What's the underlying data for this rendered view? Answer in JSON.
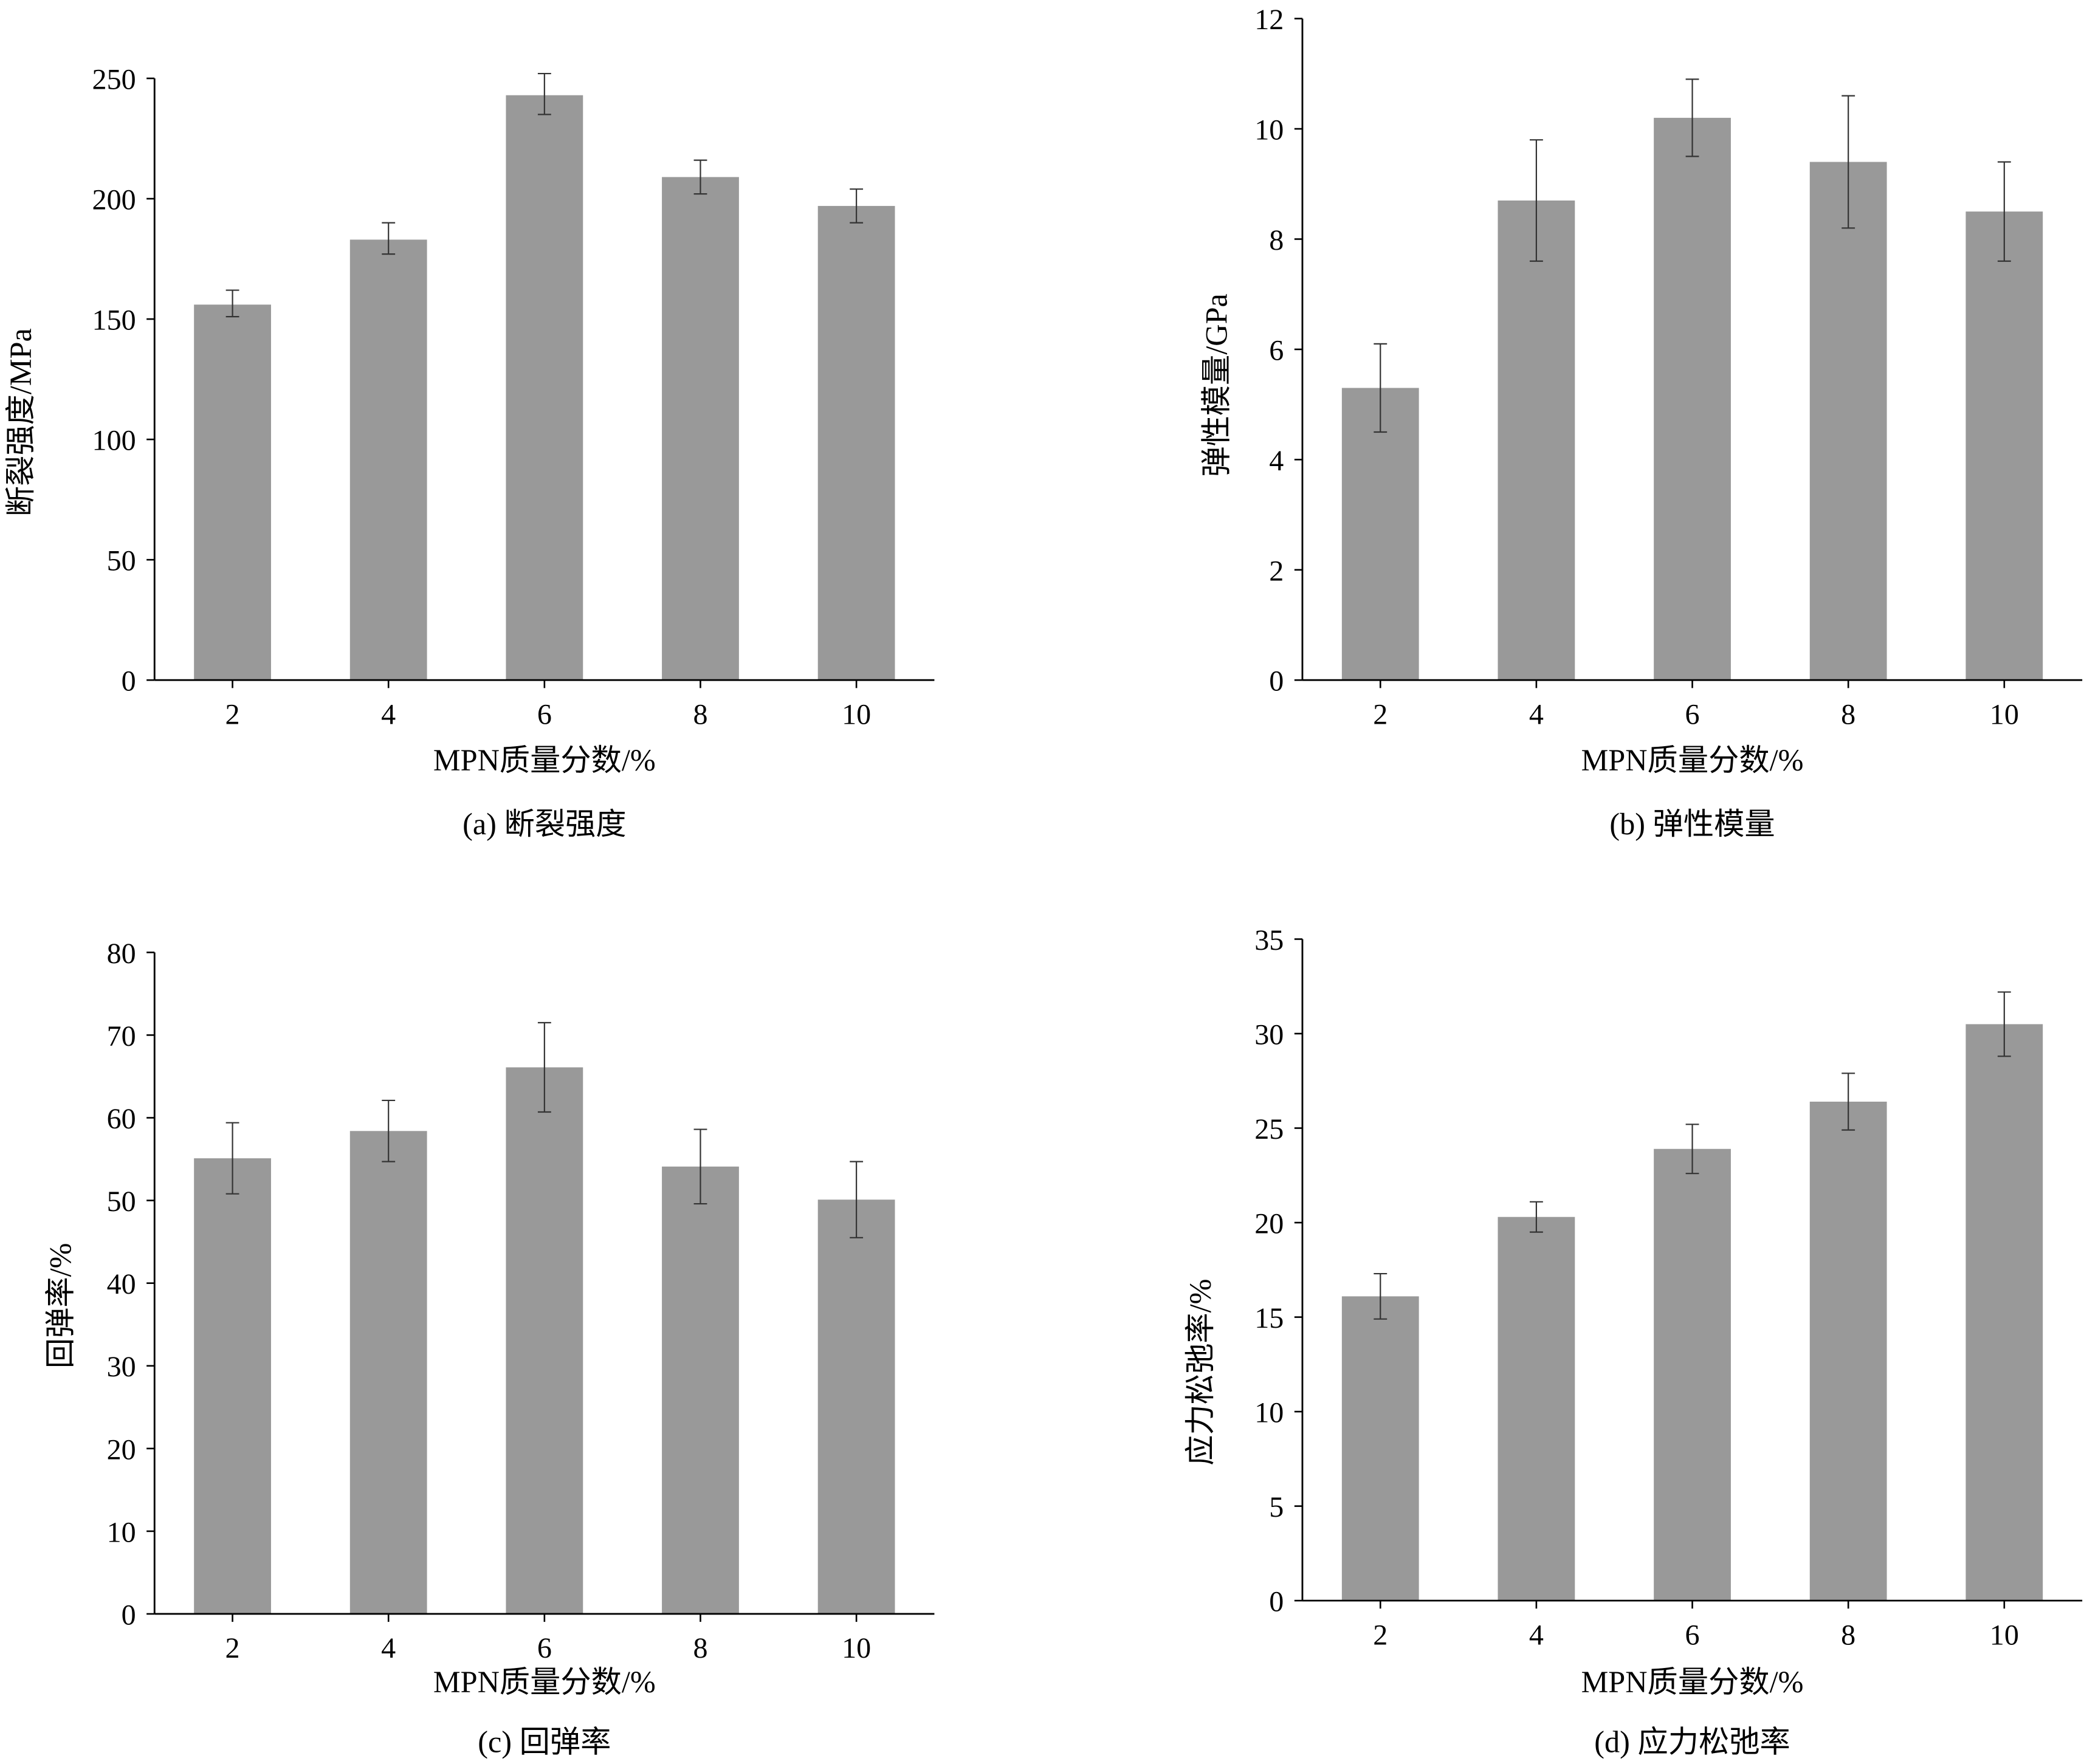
{
  "bar_color": "#999999",
  "chart_data": [
    {
      "type": "bar",
      "caption": "(a) 断裂强度",
      "xlabel": "MPN质量分数/%",
      "ylabel": "断裂强度/MPa",
      "categories": [
        "2",
        "4",
        "6",
        "8",
        "10"
      ],
      "values": [
        156,
        183,
        243,
        209,
        197
      ],
      "error_low": [
        151,
        177,
        235,
        202,
        190
      ],
      "error_high": [
        162,
        190,
        252,
        216,
        204
      ],
      "ylim": [
        0,
        250
      ],
      "yticks": [
        "0",
        "50",
        "100",
        "150",
        "200",
        "250"
      ]
    },
    {
      "type": "bar",
      "caption": "(b) 弹性模量",
      "xlabel": "MPN质量分数/%",
      "ylabel": "弹性模量/GPa",
      "categories": [
        "2",
        "4",
        "6",
        "8",
        "10"
      ],
      "values": [
        5.3,
        8.7,
        10.2,
        9.4,
        8.5
      ],
      "error_low": [
        4.5,
        7.6,
        9.5,
        8.2,
        7.6
      ],
      "error_high": [
        6.1,
        9.8,
        10.9,
        10.6,
        9.4
      ],
      "ylim": [
        0,
        12
      ],
      "yticks": [
        "0",
        "2",
        "4",
        "6",
        "8",
        "10",
        "12"
      ]
    },
    {
      "type": "bar",
      "caption": "(c) 回弹率",
      "xlabel": "MPN质量分数/%",
      "ylabel": "回弹率/%",
      "categories": [
        "2",
        "4",
        "6",
        "8",
        "10"
      ],
      "values": [
        55.1,
        58.4,
        66.1,
        54.1,
        50.1
      ],
      "error_low": [
        50.8,
        54.7,
        60.7,
        49.6,
        45.5
      ],
      "error_high": [
        59.4,
        62.1,
        71.5,
        58.6,
        54.7
      ],
      "ylim": [
        0,
        80
      ],
      "yticks": [
        "0",
        "10",
        "20",
        "30",
        "40",
        "50",
        "60",
        "70",
        "80"
      ]
    },
    {
      "type": "bar",
      "caption": "(d) 应力松弛率",
      "xlabel": "MPN质量分数/%",
      "ylabel": "应力松弛率/%",
      "categories": [
        "2",
        "4",
        "6",
        "8",
        "10"
      ],
      "values": [
        16.1,
        20.3,
        23.9,
        26.4,
        30.5
      ],
      "error_low": [
        14.9,
        19.5,
        22.6,
        24.9,
        28.8
      ],
      "error_high": [
        17.3,
        21.1,
        25.2,
        27.9,
        32.2
      ],
      "ylim": [
        0,
        35
      ],
      "yticks": [
        "0",
        "5",
        "10",
        "15",
        "20",
        "25",
        "30",
        "35"
      ]
    }
  ]
}
